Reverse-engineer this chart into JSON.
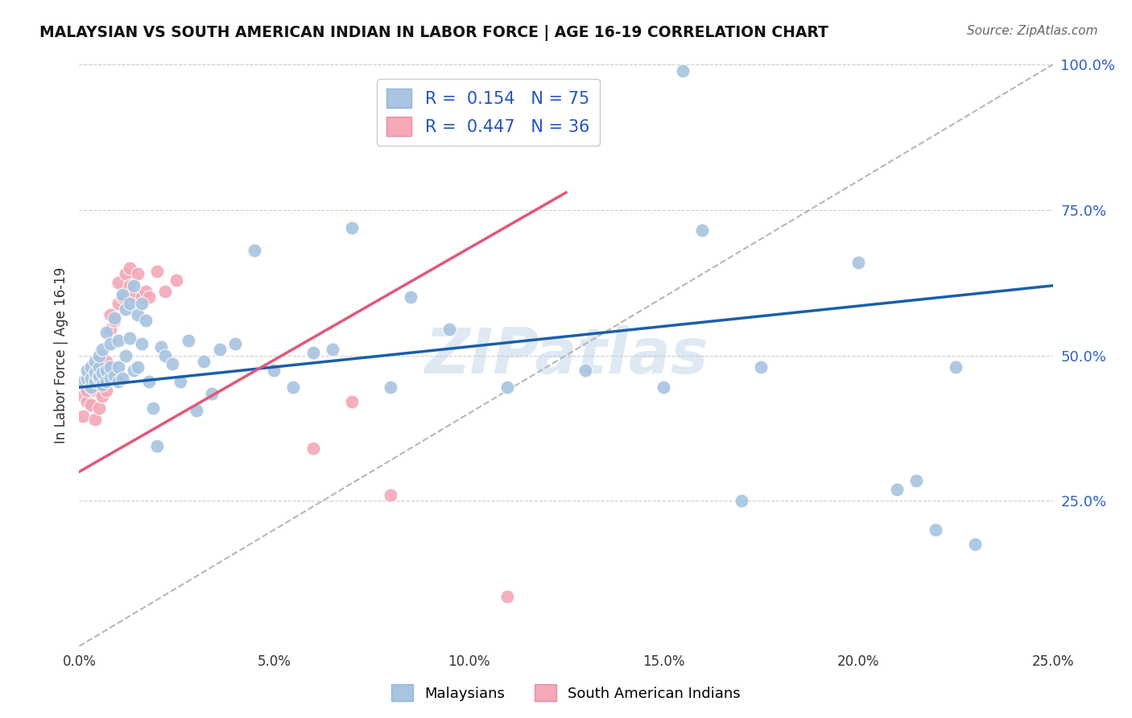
{
  "title": "MALAYSIAN VS SOUTH AMERICAN INDIAN IN LABOR FORCE | AGE 16-19 CORRELATION CHART",
  "source": "Source: ZipAtlas.com",
  "ylabel": "In Labor Force | Age 16-19",
  "xlim": [
    0.0,
    0.25
  ],
  "ylim": [
    0.0,
    1.0
  ],
  "xticklabels": [
    "0.0%",
    "",
    "5.0%",
    "",
    "10.0%",
    "",
    "15.0%",
    "",
    "20.0%",
    "",
    "25.0%"
  ],
  "xtick_vals": [
    0.0,
    0.025,
    0.05,
    0.075,
    0.1,
    0.125,
    0.15,
    0.175,
    0.2,
    0.225,
    0.25
  ],
  "yticklabels": [
    "25.0%",
    "50.0%",
    "75.0%",
    "100.0%"
  ],
  "ytick_vals": [
    0.25,
    0.5,
    0.75,
    1.0
  ],
  "blue_R": 0.154,
  "blue_N": 75,
  "pink_R": 0.447,
  "pink_N": 36,
  "blue_color": "#a8c4e0",
  "pink_color": "#f4a8b8",
  "blue_line_color": "#1a5fa8",
  "pink_line_color": "#e05878",
  "diag_line_color": "#b0b0b0",
  "watermark": "ZIPatlas",
  "legend_blue_label": "Malaysians",
  "legend_pink_label": "South American Indians",
  "blue_scatter_x": [
    0.001,
    0.002,
    0.002,
    0.003,
    0.003,
    0.003,
    0.004,
    0.004,
    0.004,
    0.005,
    0.005,
    0.005,
    0.005,
    0.006,
    0.006,
    0.006,
    0.007,
    0.007,
    0.007,
    0.008,
    0.008,
    0.008,
    0.009,
    0.009,
    0.01,
    0.01,
    0.01,
    0.011,
    0.011,
    0.012,
    0.012,
    0.013,
    0.013,
    0.014,
    0.014,
    0.015,
    0.015,
    0.016,
    0.016,
    0.017,
    0.018,
    0.019,
    0.02,
    0.021,
    0.022,
    0.024,
    0.026,
    0.028,
    0.03,
    0.032,
    0.034,
    0.036,
    0.04,
    0.045,
    0.05,
    0.055,
    0.06,
    0.065,
    0.07,
    0.08,
    0.085,
    0.095,
    0.11,
    0.13,
    0.15,
    0.155,
    0.16,
    0.17,
    0.175,
    0.2,
    0.21,
    0.215,
    0.22,
    0.225,
    0.23
  ],
  "blue_scatter_y": [
    0.455,
    0.46,
    0.475,
    0.445,
    0.46,
    0.48,
    0.455,
    0.47,
    0.49,
    0.46,
    0.465,
    0.48,
    0.5,
    0.45,
    0.47,
    0.51,
    0.455,
    0.475,
    0.54,
    0.46,
    0.48,
    0.52,
    0.465,
    0.565,
    0.455,
    0.48,
    0.525,
    0.46,
    0.605,
    0.5,
    0.58,
    0.53,
    0.59,
    0.475,
    0.62,
    0.48,
    0.57,
    0.52,
    0.59,
    0.56,
    0.455,
    0.41,
    0.345,
    0.515,
    0.5,
    0.485,
    0.455,
    0.525,
    0.405,
    0.49,
    0.435,
    0.51,
    0.52,
    0.68,
    0.475,
    0.445,
    0.505,
    0.51,
    0.72,
    0.445,
    0.6,
    0.545,
    0.445,
    0.475,
    0.445,
    0.99,
    0.715,
    0.25,
    0.48,
    0.66,
    0.27,
    0.285,
    0.2,
    0.48,
    0.175
  ],
  "pink_scatter_x": [
    0.001,
    0.001,
    0.002,
    0.002,
    0.003,
    0.003,
    0.004,
    0.004,
    0.005,
    0.005,
    0.005,
    0.006,
    0.006,
    0.007,
    0.007,
    0.008,
    0.008,
    0.009,
    0.01,
    0.01,
    0.011,
    0.012,
    0.013,
    0.013,
    0.014,
    0.015,
    0.016,
    0.017,
    0.018,
    0.02,
    0.022,
    0.025,
    0.06,
    0.07,
    0.08,
    0.11
  ],
  "pink_scatter_y": [
    0.43,
    0.395,
    0.42,
    0.44,
    0.415,
    0.445,
    0.39,
    0.44,
    0.41,
    0.44,
    0.46,
    0.43,
    0.47,
    0.44,
    0.49,
    0.545,
    0.57,
    0.56,
    0.59,
    0.625,
    0.6,
    0.64,
    0.65,
    0.62,
    0.6,
    0.64,
    0.6,
    0.61,
    0.6,
    0.645,
    0.61,
    0.63,
    0.34,
    0.42,
    0.26,
    0.085
  ],
  "blue_line_x0": 0.0,
  "blue_line_x1": 0.25,
  "blue_line_y0": 0.445,
  "blue_line_y1": 0.62,
  "pink_line_x0": 0.0,
  "pink_line_x1": 0.125,
  "pink_line_y0": 0.3,
  "pink_line_y1": 0.78,
  "diag_line_x0": 0.0,
  "diag_line_x1": 0.25,
  "diag_line_y0": 0.0,
  "diag_line_y1": 1.0
}
